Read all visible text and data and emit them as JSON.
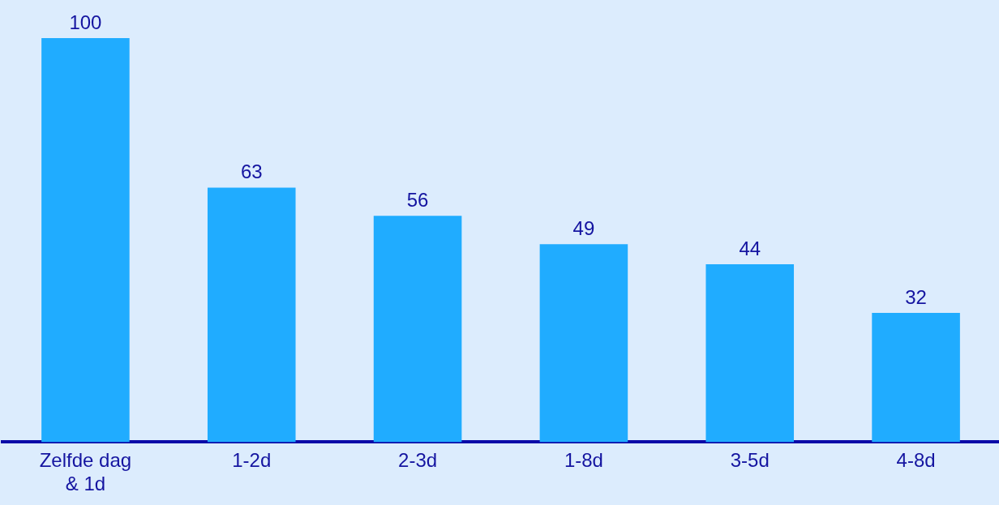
{
  "chart_data": {
    "type": "bar",
    "categories": [
      "Zelfde dag & 1d",
      "1-2d",
      "2-3d",
      "1-8d",
      "3-5d",
      "4-8d"
    ],
    "values": [
      100,
      63,
      56,
      49,
      44,
      32
    ],
    "color": "#20acff",
    "data_labels": true,
    "grid": false,
    "legend": false
  }
}
